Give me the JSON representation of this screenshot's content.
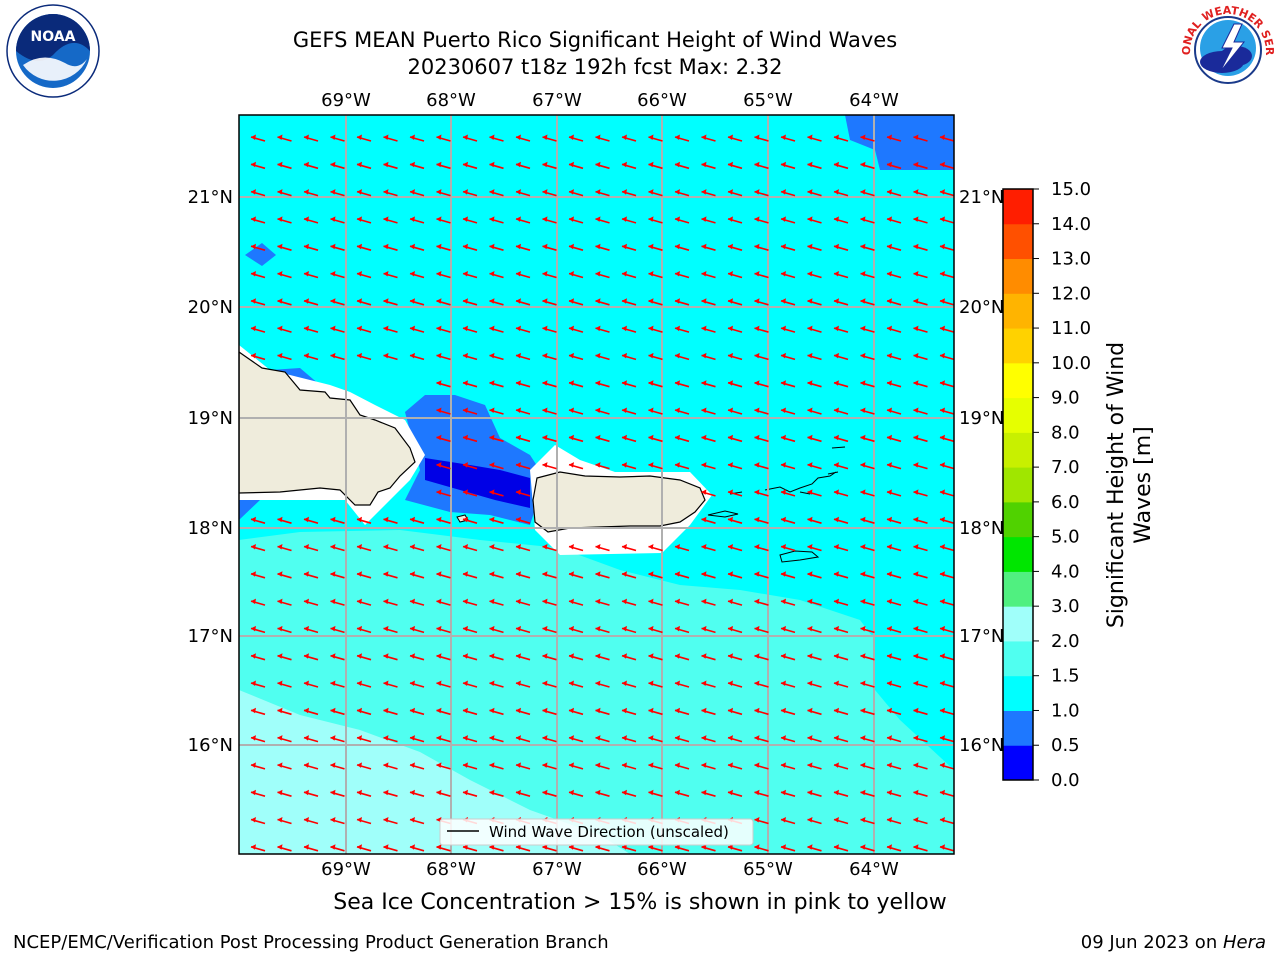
{
  "header": {
    "title_line1": "GEFS MEAN Puerto Rico Significant Height of Wind Waves",
    "title_line2": "20230607 t18z 192h fcst   Max: 2.32"
  },
  "logos": {
    "left": {
      "icon": "noaa-logo-icon",
      "text": "NOAA"
    },
    "right": {
      "icon": "national-weather-service-logo-icon",
      "text": "NATIONAL WEATHER SERVICE"
    }
  },
  "map": {
    "lon_labels": [
      "69°W",
      "68°W",
      "67°W",
      "66°W",
      "65°W",
      "64°W"
    ],
    "lat_labels": [
      "21°N",
      "20°N",
      "19°N",
      "18°N",
      "17°N",
      "16°N"
    ],
    "legend_label": "Wind Wave Direction (unscaled)",
    "arrow_color": "#ff0000",
    "land_color": "#efecdc",
    "colors": {
      "deep_blue": "#0000e6",
      "mid_blue": "#1e78ff",
      "cyan": "#00ffff",
      "light_cyan": "#50fff0",
      "pale_cyan": "#a0fffa"
    }
  },
  "colorbar": {
    "label": "Significant Height of Wind Waves [m]",
    "label_line1": "Significant Height of Wind",
    "label_line2": "Waves [m]",
    "ticks": [
      "0.0",
      "0.5",
      "1.0",
      "1.5",
      "2.0",
      "3.0",
      "4.0",
      "5.0",
      "6.0",
      "7.0",
      "8.0",
      "9.0",
      "10.0",
      "11.0",
      "12.0",
      "13.0",
      "14.0",
      "15.0"
    ],
    "colors": [
      "#0000ff",
      "#1e78ff",
      "#00ffff",
      "#50fff0",
      "#a0fffa",
      "#50f080",
      "#00e600",
      "#50d200",
      "#a0e600",
      "#c8f000",
      "#e6ff00",
      "#ffff00",
      "#ffd200",
      "#ffb400",
      "#ff8c00",
      "#ff5000",
      "#ff1e00",
      "#ff0000"
    ]
  },
  "note": "Sea Ice Concentration > 15% is shown in pink to yellow",
  "footer": {
    "left": "NCEP/EMC/Verification Post Processing Product Generation Branch",
    "right_date": "09 Jun 2023 on ",
    "right_host": "Hera"
  }
}
